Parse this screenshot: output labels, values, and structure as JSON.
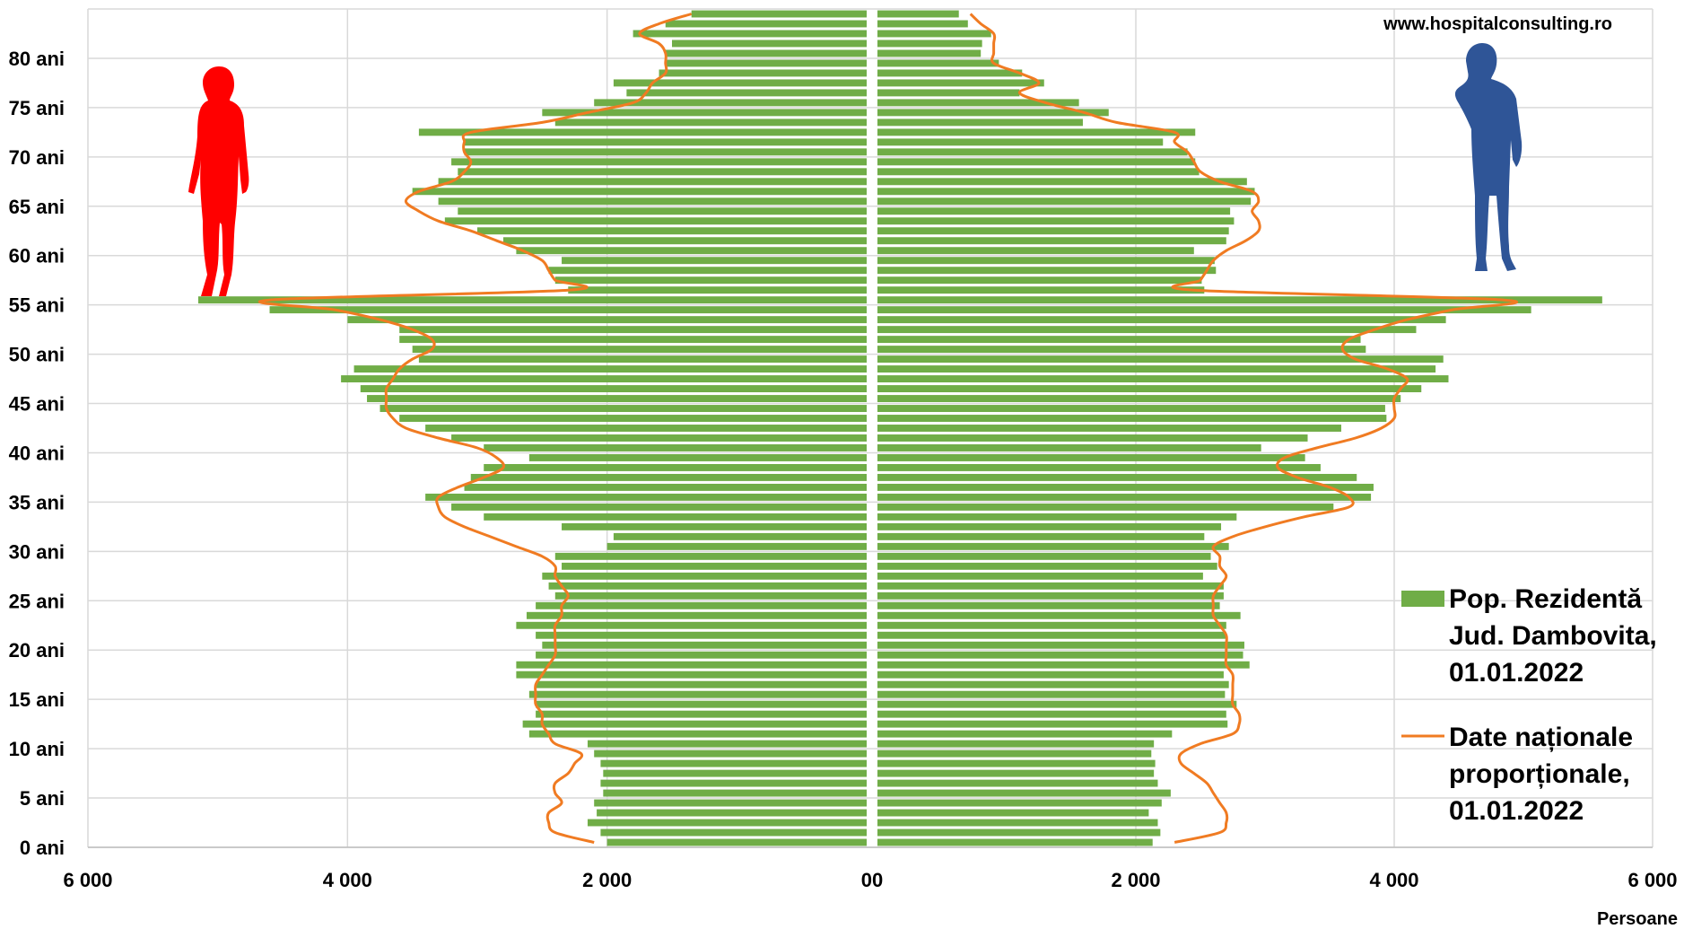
{
  "chart_data": {
    "type": "bar",
    "orientation": "horizontal",
    "layout": "population-pyramid",
    "website": "www.hospitalconsulting.ro",
    "xlabel": "Persoane",
    "x_ticks": [
      {
        "value": -6000,
        "label": "6 000"
      },
      {
        "value": -4000,
        "label": "4 000"
      },
      {
        "value": -2000,
        "label": "2 000"
      },
      {
        "value": 0,
        "label": "00"
      },
      {
        "value": 2000,
        "label": "2 000"
      },
      {
        "value": 4000,
        "label": "4 000"
      },
      {
        "value": 6000,
        "label": "6 000"
      }
    ],
    "xlim": [
      -6000,
      6000
    ],
    "age_range": [
      0,
      85
    ],
    "y_ticks": [
      {
        "age": 0,
        "label": "0 ani"
      },
      {
        "age": 5,
        "label": "5 ani"
      },
      {
        "age": 10,
        "label": "10 ani"
      },
      {
        "age": 15,
        "label": "15 ani"
      },
      {
        "age": 20,
        "label": "20 ani"
      },
      {
        "age": 25,
        "label": "25 ani"
      },
      {
        "age": 30,
        "label": "30 ani"
      },
      {
        "age": 35,
        "label": "35 ani"
      },
      {
        "age": 40,
        "label": "40 ani"
      },
      {
        "age": 45,
        "label": "45 ani"
      },
      {
        "age": 50,
        "label": "50 ani"
      },
      {
        "age": 55,
        "label": "55 ani"
      },
      {
        "age": 60,
        "label": "60 ani"
      },
      {
        "age": 65,
        "label": "65 ani"
      },
      {
        "age": 70,
        "label": "70 ani"
      },
      {
        "age": 75,
        "label": "75 ani"
      },
      {
        "age": 80,
        "label": "80 ani"
      }
    ],
    "series": [
      {
        "name": "Pop. Rezidentă Jud. Dambovita, 01.01.2022",
        "legend_lines": [
          "Pop. Rezidentă",
          "Jud. Dambovita,",
          "01.01.2022"
        ],
        "kind": "bar",
        "color": "#70ad47",
        "female": [
          2000,
          2050,
          2150,
          2080,
          2100,
          2030,
          2050,
          2030,
          2050,
          2100,
          2150,
          2600,
          2650,
          2550,
          2550,
          2600,
          2550,
          2700,
          2700,
          2550,
          2500,
          2550,
          2700,
          2620,
          2550,
          2400,
          2450,
          2500,
          2350,
          2400,
          2000,
          1950,
          2350,
          2950,
          3200,
          3400,
          3100,
          3050,
          2950,
          2600,
          2950,
          3200,
          3400,
          3600,
          3750,
          3850,
          3900,
          4050,
          3950,
          3450,
          3500,
          3600,
          3600,
          4000,
          4600,
          5150,
          2300,
          2400,
          2450,
          2350,
          2700,
          2800,
          3000,
          3250,
          3150,
          3300,
          3500,
          3300,
          3150,
          3200,
          3100,
          3100,
          3450,
          2400,
          2500,
          2100,
          1850,
          1950,
          1600,
          1550,
          1550,
          1500,
          1800,
          1550,
          1350
        ],
        "male": [
          2130,
          2190,
          2170,
          2100,
          2200,
          2270,
          2170,
          2140,
          2150,
          2120,
          2140,
          2280,
          2710,
          2700,
          2780,
          2690,
          2720,
          2680,
          2880,
          2830,
          2840,
          2700,
          2700,
          2810,
          2650,
          2680,
          2680,
          2520,
          2630,
          2580,
          2720,
          2530,
          2660,
          2780,
          3530,
          3820,
          3840,
          3710,
          3430,
          3310,
          2970,
          3330,
          3590,
          3940,
          3930,
          4050,
          4210,
          4420,
          4320,
          4380,
          3780,
          3740,
          4170,
          4400,
          5060,
          5610,
          2530,
          2510,
          2620,
          2610,
          2450,
          2700,
          2720,
          2760,
          2730,
          2890,
          2920,
          2860,
          2490,
          2460,
          2400,
          2210,
          2460,
          1590,
          1790,
          1560,
          1100,
          1290,
          1120,
          940,
          800,
          810,
          880,
          700,
          630
        ],
        "fill_male": [
          2150,
          2250,
          2150,
          2100,
          2200,
          2350,
          2200,
          2150,
          2200,
          2150,
          2150,
          2350,
          2700,
          2700,
          2800,
          2700,
          2750,
          2700,
          2900,
          2900,
          2850,
          2750,
          2700,
          2800,
          2650,
          2700,
          2650,
          2550,
          2650,
          2650,
          2700,
          2500,
          2650,
          2800,
          3500,
          3850,
          3850,
          3750,
          3400,
          3350,
          3000,
          3300,
          3600,
          3950,
          3950,
          4100,
          4200,
          4450,
          4350,
          4400,
          3800,
          3750,
          4200,
          4450,
          5050,
          5600,
          2550,
          2500,
          2650,
          2650,
          2450,
          2700,
          2700,
          2750,
          2750,
          2900,
          2900,
          2850,
          2500,
          2450,
          2400,
          2250,
          2450,
          1600,
          1800,
          1550,
          1100,
          1300,
          1100,
          900,
          800,
          800,
          900,
          700,
          600
        ]
      },
      {
        "name": "Date naționale proporționale, 01.01.2022",
        "legend_lines": [
          "Date naționale",
          "proporționale,",
          "01.01.2022"
        ],
        "kind": "line",
        "color": "#f07b22",
        "female": [
          2100,
          2400,
          2450,
          2450,
          2350,
          2400,
          2400,
          2300,
          2250,
          2200,
          2400,
          2450,
          2500,
          2500,
          2550,
          2550,
          2550,
          2500,
          2450,
          2400,
          2400,
          2400,
          2400,
          2350,
          2350,
          2300,
          2350,
          2400,
          2400,
          2500,
          2700,
          2900,
          3100,
          3250,
          3300,
          3300,
          3150,
          2950,
          2800,
          2850,
          3000,
          3300,
          3550,
          3650,
          3700,
          3700,
          3700,
          3650,
          3600,
          3500,
          3350,
          3350,
          3500,
          3750,
          4100,
          4600,
          2300,
          2400,
          2450,
          2500,
          2650,
          2850,
          3050,
          3300,
          3450,
          3550,
          3450,
          3200,
          3100,
          3050,
          3100,
          3100,
          3050,
          2500,
          2150,
          1800,
          1700,
          1650,
          1550,
          1550,
          1550,
          1600,
          1750,
          1600,
          1350
        ],
        "male": [
          2300,
          2650,
          2700,
          2700,
          2650,
          2600,
          2550,
          2450,
          2350,
          2350,
          2500,
          2750,
          2800,
          2800,
          2750,
          2750,
          2750,
          2750,
          2700,
          2700,
          2700,
          2700,
          2650,
          2600,
          2600,
          2600,
          2650,
          2700,
          2650,
          2650,
          2600,
          2750,
          3000,
          3300,
          3650,
          3650,
          3500,
          3250,
          3100,
          3150,
          3400,
          3700,
          3900,
          4000,
          4000,
          4000,
          4050,
          4100,
          3950,
          3700,
          3600,
          3650,
          3850,
          4100,
          4450,
          4850,
          2450,
          2500,
          2550,
          2600,
          2700,
          2850,
          2950,
          2950,
          2900,
          2950,
          2900,
          2650,
          2500,
          2450,
          2400,
          2300,
          2300,
          1850,
          1600,
          1300,
          1100,
          1250,
          1100,
          900,
          900,
          900,
          900,
          800,
          720
        ]
      }
    ],
    "legend_position": "bottom-right",
    "grid": true,
    "decorations": [
      {
        "icon": "female-silhouette-icon",
        "side": "left",
        "color": "#ff0000"
      },
      {
        "icon": "male-silhouette-icon",
        "side": "right",
        "color": "#2f5597"
      }
    ]
  }
}
